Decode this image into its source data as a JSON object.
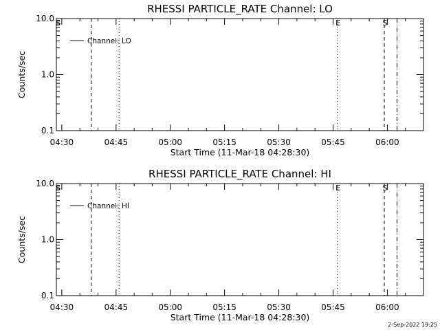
{
  "chart_data": [
    {
      "type": "line",
      "title": "RHESSI PARTICLE_RATE Channel: LO",
      "xlabel": "Start Time (11-Mar-18 04:28:30)",
      "ylabel": "Counts/sec",
      "yscale": "log",
      "ylim": [
        0.1,
        10.0
      ],
      "xlim": [
        "04:28:30",
        "06:10:00"
      ],
      "x_ticks": [
        "04:30",
        "04:45",
        "05:00",
        "05:15",
        "05:30",
        "05:45",
        "06:00"
      ],
      "y_ticks": [
        "0.1",
        "1.0",
        "10.0"
      ],
      "legend": {
        "placement": "top-left",
        "entries": [
          "Channel: LO"
        ]
      },
      "series": [
        {
          "name": "Channel: LO",
          "values": []
        }
      ],
      "events": [
        {
          "time": "04:28:50",
          "style": "none",
          "label": "S"
        },
        {
          "time": "04:38:10",
          "style": "dashed",
          "label": ""
        },
        {
          "time": "04:45:50",
          "style": "dotted",
          "label": ""
        },
        {
          "time": "05:46:10",
          "style": "dotted",
          "label": "E"
        },
        {
          "time": "05:59:10",
          "style": "dashed",
          "label": "S"
        },
        {
          "time": "06:02:40",
          "style": "dashdot",
          "label": ""
        }
      ],
      "grid": false
    },
    {
      "type": "line",
      "title": "RHESSI PARTICLE_RATE Channel: HI",
      "xlabel": "Start Time (11-Mar-18 04:28:30)",
      "ylabel": "Counts/sec",
      "yscale": "log",
      "ylim": [
        0.1,
        10.0
      ],
      "xlim": [
        "04:28:30",
        "06:10:00"
      ],
      "x_ticks": [
        "04:30",
        "04:45",
        "05:00",
        "05:15",
        "05:30",
        "05:45",
        "06:00"
      ],
      "y_ticks": [
        "0.1",
        "1.0",
        "10.0"
      ],
      "legend": {
        "placement": "top-left",
        "entries": [
          "Channel: HI"
        ]
      },
      "series": [
        {
          "name": "Channel: HI",
          "values": []
        }
      ],
      "events": [
        {
          "time": "04:28:50",
          "style": "none",
          "label": "S"
        },
        {
          "time": "04:38:10",
          "style": "dashed",
          "label": ""
        },
        {
          "time": "04:45:50",
          "style": "dotted",
          "label": ""
        },
        {
          "time": "05:46:10",
          "style": "dotted",
          "label": "E"
        },
        {
          "time": "05:59:10",
          "style": "dashed",
          "label": "S"
        },
        {
          "time": "06:02:40",
          "style": "dashdot",
          "label": ""
        }
      ],
      "grid": false
    }
  ],
  "footer": {
    "timestamp": "2-Sep-2022 19:25"
  }
}
